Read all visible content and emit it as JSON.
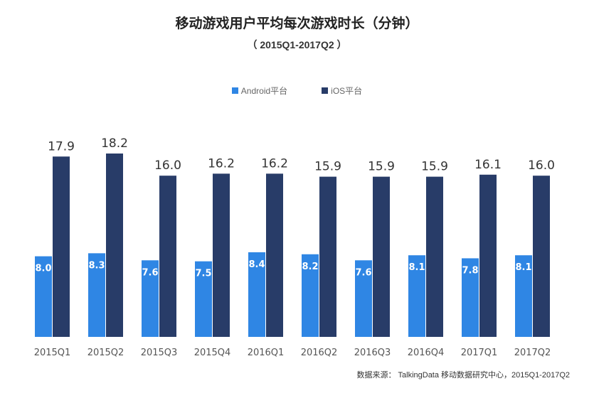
{
  "chart_data": {
    "type": "bar",
    "title": "移动游戏用户平均每次游戏时长（分钟）",
    "subtitle": "（ 2015Q1-2017Q2 ）",
    "categories": [
      "2015Q1",
      "2015Q2",
      "2015Q3",
      "2015Q4",
      "2016Q1",
      "2016Q2",
      "2016Q3",
      "2016Q4",
      "2017Q1",
      "2017Q2"
    ],
    "series": [
      {
        "name": "Android平台",
        "color": "#2f86e4",
        "values": [
          8.0,
          8.3,
          7.6,
          7.5,
          8.4,
          8.2,
          7.6,
          8.1,
          7.8,
          8.1
        ]
      },
      {
        "name": "iOS平台",
        "color": "#283c68",
        "values": [
          17.9,
          18.2,
          16.0,
          16.2,
          16.2,
          15.9,
          15.9,
          15.9,
          16.1,
          16.0
        ]
      }
    ],
    "ylim": [
      0,
      18.2
    ],
    "grid": false,
    "legend_position": "top-center",
    "source": "数据来源： TalkingData 移动数据研究中心，2015Q1-2017Q2"
  }
}
